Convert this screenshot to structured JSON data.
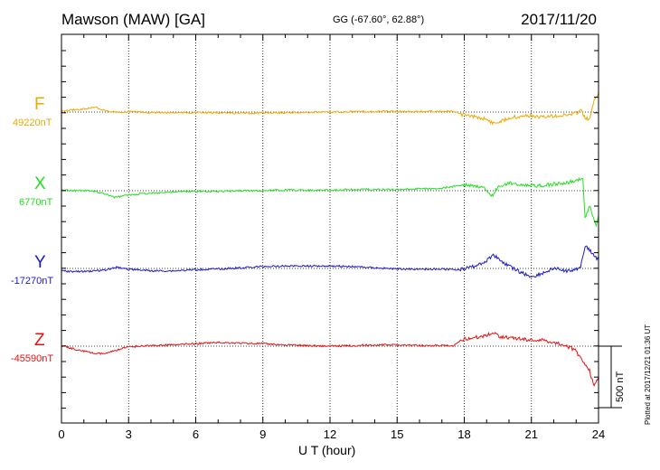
{
  "header": {
    "station": "Mawson (MAW)  [GA]",
    "coords": "GG (-67.60°,  62.88°)",
    "date": "2017/11/20"
  },
  "footer": {
    "plotted": "Plotted at 2017/12/21 01:36 UT",
    "scale_label": "500 nT"
  },
  "colors": {
    "F": "#f0a800",
    "X": "#22e022",
    "Y": "#1a1acc",
    "Z": "#e81010"
  },
  "chart_data": {
    "type": "line",
    "xlabel": "U T (hour)",
    "xlim": [
      0,
      24
    ],
    "xticks": [
      "0",
      "3",
      "6",
      "9",
      "12",
      "15",
      "18",
      "21",
      "24"
    ],
    "scale_bar_nT": 500,
    "grid": "dotted vertical every 3 h, dotted baseline per component",
    "series": [
      {
        "name": "F",
        "baseline": "49220nT",
        "x": [
          0,
          0.5,
          1,
          1.5,
          1.8,
          2.1,
          2.5,
          3,
          4,
          5,
          6,
          7,
          8,
          9,
          10,
          11,
          12,
          13,
          14,
          15,
          16,
          17,
          17.5,
          17.9,
          18.2,
          18.6,
          19,
          19.3,
          19.6,
          20,
          20.5,
          21,
          21.5,
          22,
          22.5,
          23,
          23.2,
          23.4,
          23.6,
          23.8,
          24
        ],
        "y": [
          10,
          18,
          25,
          40,
          22,
          5,
          -2,
          4,
          -3,
          -5,
          -4,
          -6,
          -10,
          -6,
          -4,
          -2,
          0,
          4,
          4,
          5,
          4,
          7,
          5,
          -20,
          -35,
          -42,
          -58,
          -90,
          -75,
          -45,
          -35,
          -30,
          -40,
          -30,
          -25,
          -10,
          20,
          -50,
          -60,
          85,
          160
        ]
      },
      {
        "name": "X",
        "baseline": "6770nT",
        "x": [
          0,
          0.5,
          1,
          1.5,
          2,
          2.4,
          2.8,
          3.5,
          4,
          5,
          6,
          7,
          8,
          9,
          10,
          11,
          12,
          13,
          14,
          15,
          16,
          17,
          18,
          18.5,
          18.9,
          19.2,
          19.5,
          20,
          21,
          21.5,
          22,
          22.5,
          23,
          23.3,
          23.4,
          23.6,
          23.9,
          24
        ],
        "y": [
          5,
          2,
          0,
          -5,
          -30,
          -55,
          -40,
          -25,
          -20,
          -10,
          -5,
          -5,
          0,
          0,
          5,
          5,
          5,
          10,
          10,
          10,
          15,
          20,
          50,
          40,
          20,
          -50,
          30,
          60,
          45,
          40,
          55,
          60,
          85,
          95,
          -220,
          -120,
          -280,
          -200
        ]
      },
      {
        "name": "Y",
        "baseline": "-17270nT",
        "x": [
          0,
          0.5,
          1,
          1.5,
          2,
          2.5,
          3,
          4,
          5,
          6,
          7,
          8,
          9,
          10,
          11,
          12,
          13,
          14,
          15,
          16,
          17,
          17.5,
          18,
          18.5,
          19,
          19.3,
          19.6,
          20,
          20.5,
          21,
          21.5,
          22,
          22.5,
          23,
          23.2,
          23.4,
          23.6,
          23.8,
          24
        ],
        "y": [
          -20,
          -25,
          -25,
          -20,
          -10,
          10,
          -5,
          -20,
          -20,
          -10,
          -5,
          5,
          15,
          20,
          20,
          20,
          15,
          5,
          -5,
          -5,
          -5,
          -10,
          -5,
          20,
          60,
          115,
          65,
          20,
          -30,
          -70,
          -40,
          0,
          -20,
          -10,
          20,
          180,
          150,
          100,
          70
        ]
      },
      {
        "name": "Z",
        "baseline": "-45590nT",
        "x": [
          0,
          0.5,
          1,
          1.5,
          2,
          2.5,
          3,
          4,
          5,
          6,
          7,
          8,
          9,
          10,
          11,
          12,
          13,
          14,
          15,
          16,
          17,
          17.5,
          18,
          18.5,
          19,
          19.3,
          19.6,
          20,
          20.5,
          21,
          21.5,
          22,
          22.5,
          23,
          23.2,
          23.4,
          23.6,
          23.8,
          24
        ],
        "y": [
          5,
          -20,
          -40,
          -60,
          -60,
          -30,
          -5,
          5,
          10,
          20,
          30,
          25,
          20,
          10,
          5,
          0,
          5,
          10,
          10,
          5,
          5,
          0,
          60,
          70,
          90,
          110,
          80,
          70,
          60,
          50,
          50,
          30,
          10,
          -40,
          -100,
          -140,
          -200,
          -330,
          -250
        ]
      }
    ]
  }
}
